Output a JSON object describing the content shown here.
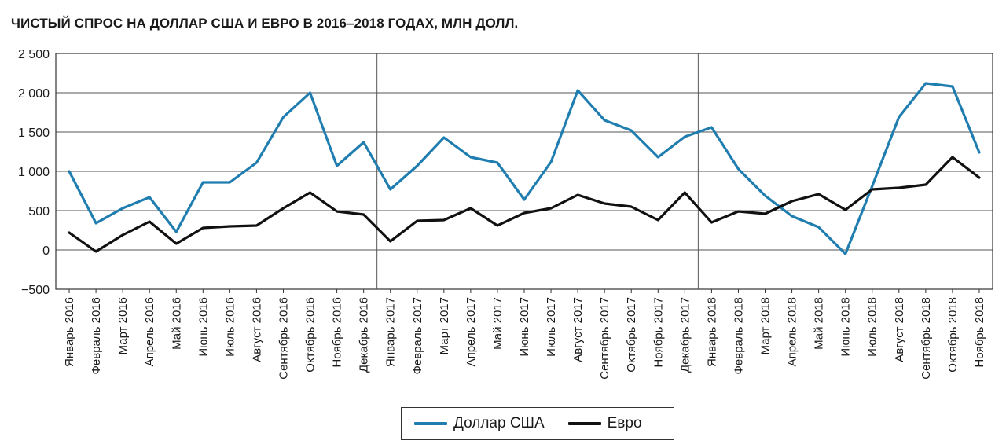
{
  "chart_data": {
    "type": "line",
    "title": "ЧИСТЫЙ СПРОС НА ДОЛЛАР США И ЕВРО В 2016–2018 ГОДАХ, МЛН ДОЛЛ.",
    "categories": [
      "Январь 2016",
      "Февраль 2016",
      "Март 2016",
      "Апрель 2016",
      "Май 2016",
      "Июнь 2016",
      "Июль 2016",
      "Август 2016",
      "Сентябрь 2016",
      "Октябрь 2016",
      "Ноябрь 2016",
      "Декабрь 2016",
      "Январь 2017",
      "Февраль 2017",
      "Март 2017",
      "Апрель 2017",
      "Май 2017",
      "Июнь 2017",
      "Июль 2017",
      "Август 2017",
      "Сентябрь 2017",
      "Октябрь 2017",
      "Ноябрь 2017",
      "Декабрь 2017",
      "Январь 2018",
      "Февраль 2018",
      "Март 2018",
      "Апрель 2018",
      "Май 2018",
      "Июнь 2018",
      "Июль 2018",
      "Август 2018",
      "Сентябрь 2018",
      "Октябрь 2018",
      "Ноябрь 2018"
    ],
    "series": [
      {
        "name": "Доллар США",
        "color": "#1f7db0",
        "values": [
          1000,
          340,
          530,
          670,
          230,
          860,
          860,
          1110,
          1690,
          2000,
          1070,
          1370,
          770,
          1070,
          1430,
          1180,
          1110,
          640,
          1120,
          2030,
          1650,
          1520,
          1180,
          1440,
          1560,
          1030,
          690,
          430,
          290,
          -50,
          810,
          1690,
          2120,
          2080,
          1240
        ]
      },
      {
        "name": "Евро",
        "color": "#111111",
        "values": [
          220,
          -20,
          190,
          360,
          80,
          280,
          300,
          310,
          530,
          730,
          490,
          450,
          110,
          370,
          380,
          530,
          310,
          470,
          530,
          700,
          590,
          550,
          380,
          730,
          350,
          490,
          460,
          620,
          710,
          510,
          770,
          790,
          830,
          1180,
          920
        ]
      }
    ],
    "yticks": [
      "2 500",
      "2 000",
      "1 500",
      "1 000",
      "500",
      "0",
      "−500"
    ],
    "ytick_values": [
      2500,
      2000,
      1500,
      1000,
      500,
      0,
      -500
    ],
    "ylim": [
      -500,
      2500
    ],
    "year_separators_after": [
      "Декабрь 2016",
      "Декабрь 2017"
    ],
    "grid": true,
    "legend_position": "bottom-center",
    "xlabel": "",
    "ylabel": ""
  }
}
